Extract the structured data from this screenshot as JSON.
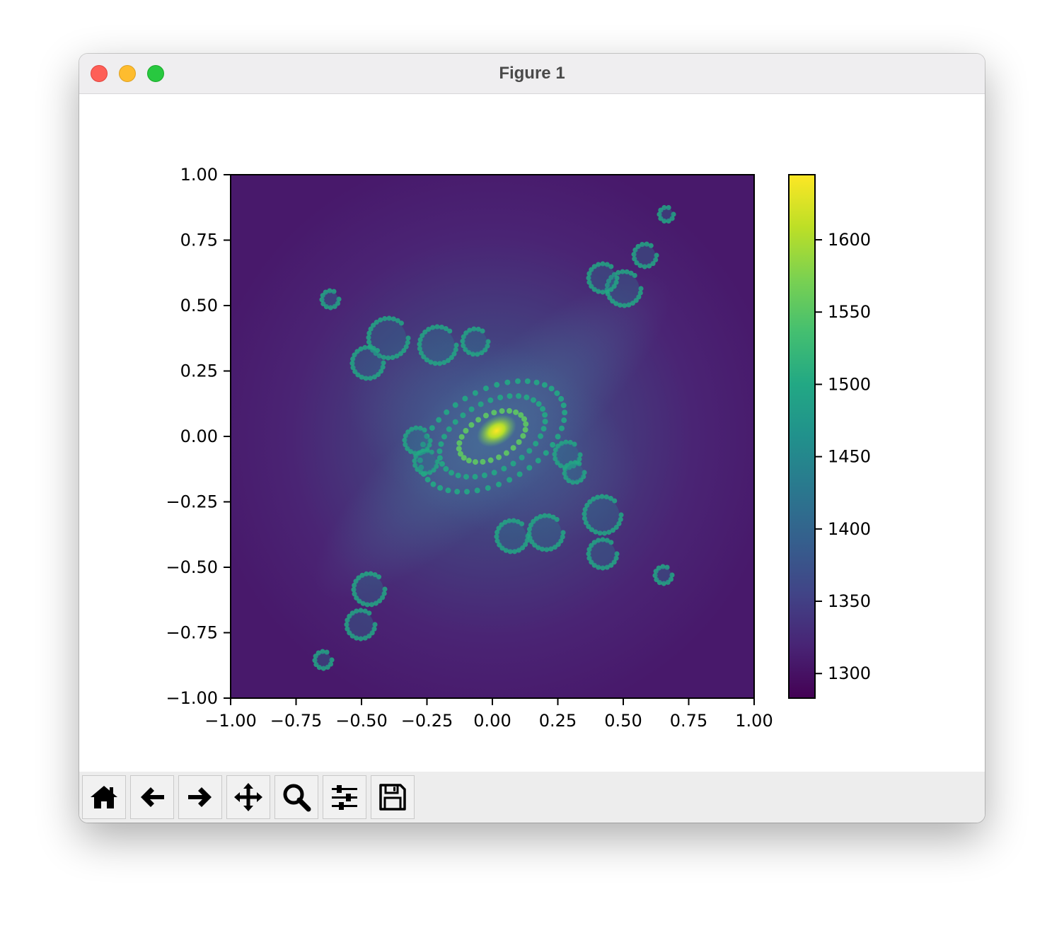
{
  "window": {
    "title": "Figure 1"
  },
  "toolbar": {
    "buttons": [
      {
        "id": "home",
        "icon": "home-icon"
      },
      {
        "id": "back",
        "icon": "arrow-left-icon"
      },
      {
        "id": "forward",
        "icon": "arrow-right-icon"
      },
      {
        "id": "pan",
        "icon": "move-icon"
      },
      {
        "id": "zoom",
        "icon": "magnifier-icon"
      },
      {
        "id": "configure",
        "icon": "sliders-icon"
      },
      {
        "id": "save",
        "icon": "floppy-disk-icon"
      }
    ]
  },
  "chart_data": {
    "type": "heatmap",
    "title": "",
    "xlabel": "",
    "ylabel": "",
    "xlim": [
      -1.0,
      1.0
    ],
    "ylim": [
      -1.0,
      1.0
    ],
    "x_ticks": [
      -1.0,
      -0.75,
      -0.5,
      -0.25,
      0.0,
      0.25,
      0.5,
      0.75,
      1.0
    ],
    "x_tick_labels": [
      "−1.00",
      "−0.75",
      "−0.50",
      "−0.25",
      "0.00",
      "0.25",
      "0.50",
      "0.75",
      "1.00"
    ],
    "y_ticks": [
      1.0,
      0.75,
      0.5,
      0.25,
      0.0,
      -0.25,
      -0.5,
      -0.75,
      -1.0
    ],
    "y_tick_labels": [
      "1.00",
      "0.75",
      "0.50",
      "0.25",
      "0.00",
      "−0.25",
      "−0.50",
      "−0.75",
      "−1.00"
    ],
    "colormap": "viridis",
    "colorbar": {
      "vmin": 1283,
      "vmax": 1645,
      "ticks": [
        1300,
        1350,
        1400,
        1450,
        1500,
        1550,
        1600
      ],
      "tick_labels": [
        "1300",
        "1350",
        "1400",
        "1450",
        "1500",
        "1550",
        "1600"
      ]
    },
    "grid": false,
    "legend": "none"
  }
}
